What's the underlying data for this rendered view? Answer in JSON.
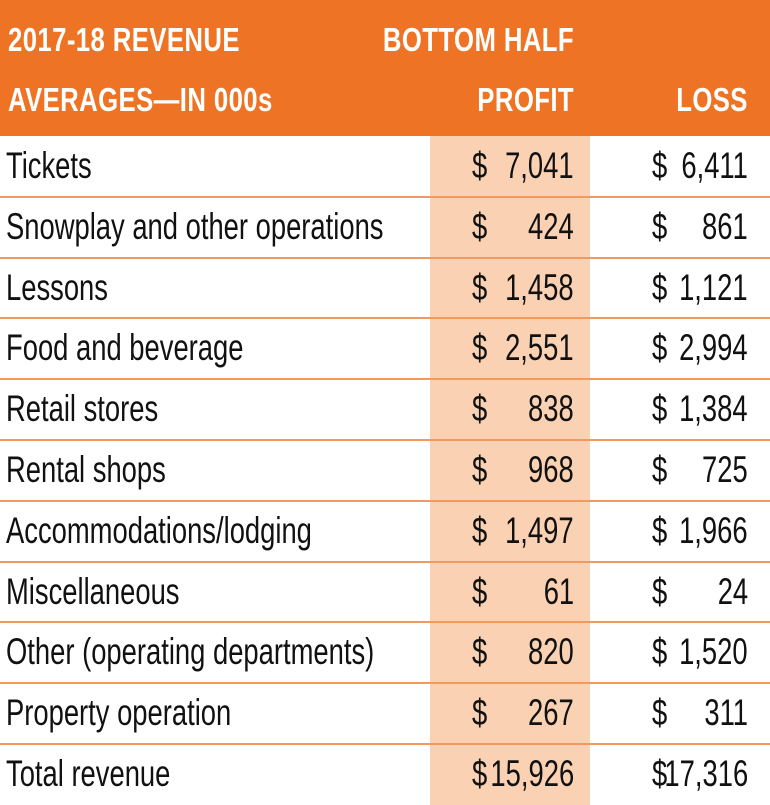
{
  "header": {
    "title_line1": "2017-18 REVENUE",
    "title_line2": "AVERAGES—IN 000s",
    "group_label": "BOTTOM HALF",
    "col_profit": "PROFIT",
    "col_loss": "LOSS"
  },
  "currency": "$",
  "colors": {
    "header_bg": "#ef7324",
    "profit_column_bg": "#fad2b3",
    "row_rule": "#f29a5e"
  },
  "chart_data": {
    "type": "table",
    "title": "2017-18 REVENUE AVERAGES—IN 000s",
    "columns": [
      "PROFIT",
      "LOSS"
    ],
    "column_group": "BOTTOM HALF",
    "rows": [
      {
        "label": "Tickets",
        "profit": "7,041",
        "loss": "6,411"
      },
      {
        "label": "Snowplay and other operations",
        "profit": "424",
        "loss": "861"
      },
      {
        "label": "Lessons",
        "profit": "1,458",
        "loss": "1,121"
      },
      {
        "label": "Food and beverage",
        "profit": "2,551",
        "loss": "2,994"
      },
      {
        "label": "Retail stores",
        "profit": "838",
        "loss": "1,384"
      },
      {
        "label": "Rental shops",
        "profit": "968",
        "loss": "725"
      },
      {
        "label": "Accommodations/lodging",
        "profit": "1,497",
        "loss": "1,966"
      },
      {
        "label": "Miscellaneous",
        "profit": "61",
        "loss": "24"
      },
      {
        "label": "Other (operating departments)",
        "profit": "820",
        "loss": "1,520"
      },
      {
        "label": "Property operation",
        "profit": "267",
        "loss": "311"
      },
      {
        "label": "Total revenue",
        "profit": "15,926",
        "loss": "17,316"
      }
    ]
  }
}
